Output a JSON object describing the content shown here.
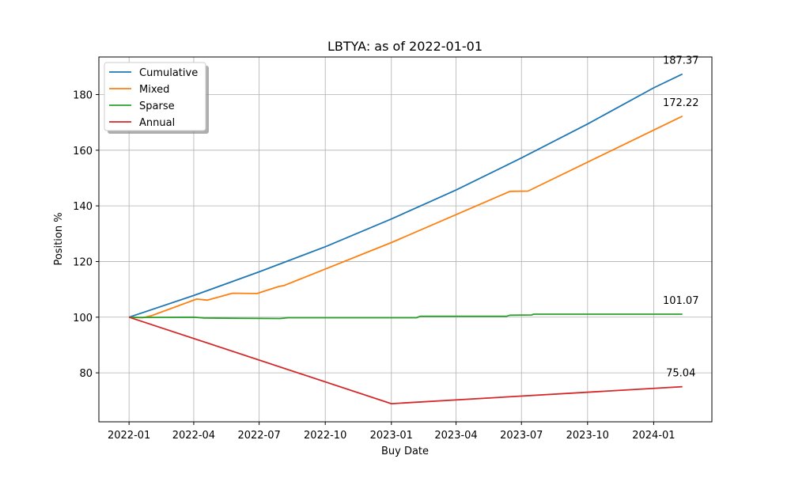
{
  "chart_data": {
    "type": "line",
    "title": "LBTYA: as of 2022-01-01",
    "xlabel": "Buy Date",
    "ylabel": "Position %",
    "x_ticks": [
      "2022-01",
      "2022-04",
      "2022-07",
      "2022-10",
      "2023-01",
      "2023-04",
      "2023-07",
      "2023-10",
      "2024-01"
    ],
    "y_ticks": [
      80,
      100,
      120,
      140,
      160,
      180
    ],
    "xlim": [
      "2021-11-20",
      "2024-03-22"
    ],
    "ylim": [
      62.4,
      193.5
    ],
    "grid": true,
    "legend_position": "top-left",
    "series": [
      {
        "name": "Cumulative",
        "color": "#1f77b4",
        "end_label": "187.37",
        "points": [
          [
            "2022-01-01",
            100
          ],
          [
            "2022-04-01",
            107.8
          ],
          [
            "2022-07-01",
            116.3
          ],
          [
            "2022-10-01",
            125.3
          ],
          [
            "2023-01-01",
            135.3
          ],
          [
            "2023-04-01",
            145.7
          ],
          [
            "2023-07-01",
            157.2
          ],
          [
            "2023-10-01",
            169.4
          ],
          [
            "2024-01-01",
            182.4
          ],
          [
            "2024-02-10",
            187.37
          ]
        ]
      },
      {
        "name": "Mixed",
        "color": "#ff7f0e",
        "end_label": "172.22",
        "points": [
          [
            "2022-01-01",
            100
          ],
          [
            "2022-01-20",
            99.8
          ],
          [
            "2022-02-01",
            100.5
          ],
          [
            "2022-04-05",
            106.5
          ],
          [
            "2022-04-20",
            106.1
          ],
          [
            "2022-05-25",
            108.6
          ],
          [
            "2022-06-28",
            108.5
          ],
          [
            "2022-07-28",
            111.0
          ],
          [
            "2022-08-05",
            111.4
          ],
          [
            "2023-01-01",
            126.8
          ],
          [
            "2023-06-15",
            145.2
          ],
          [
            "2023-07-10",
            145.3
          ],
          [
            "2024-02-10",
            172.22
          ]
        ]
      },
      {
        "name": "Sparse",
        "color": "#2ca02c",
        "end_label": "101.07",
        "points": [
          [
            "2022-01-01",
            100
          ],
          [
            "2022-01-10",
            99.9
          ],
          [
            "2022-04-01",
            100.0
          ],
          [
            "2022-04-15",
            99.7
          ],
          [
            "2022-06-01",
            99.6
          ],
          [
            "2022-07-30",
            99.5
          ],
          [
            "2022-08-10",
            99.8
          ],
          [
            "2023-02-05",
            99.8
          ],
          [
            "2023-02-10",
            100.3
          ],
          [
            "2023-06-10",
            100.3
          ],
          [
            "2023-06-15",
            100.7
          ],
          [
            "2023-07-15",
            100.8
          ],
          [
            "2023-07-18",
            101.07
          ],
          [
            "2024-02-10",
            101.07
          ]
        ]
      },
      {
        "name": "Annual",
        "color": "#d62728",
        "end_label": "75.04",
        "points": [
          [
            "2022-01-01",
            100
          ],
          [
            "2023-01-01",
            68.9
          ],
          [
            "2024-02-10",
            75.04
          ]
        ]
      }
    ]
  }
}
